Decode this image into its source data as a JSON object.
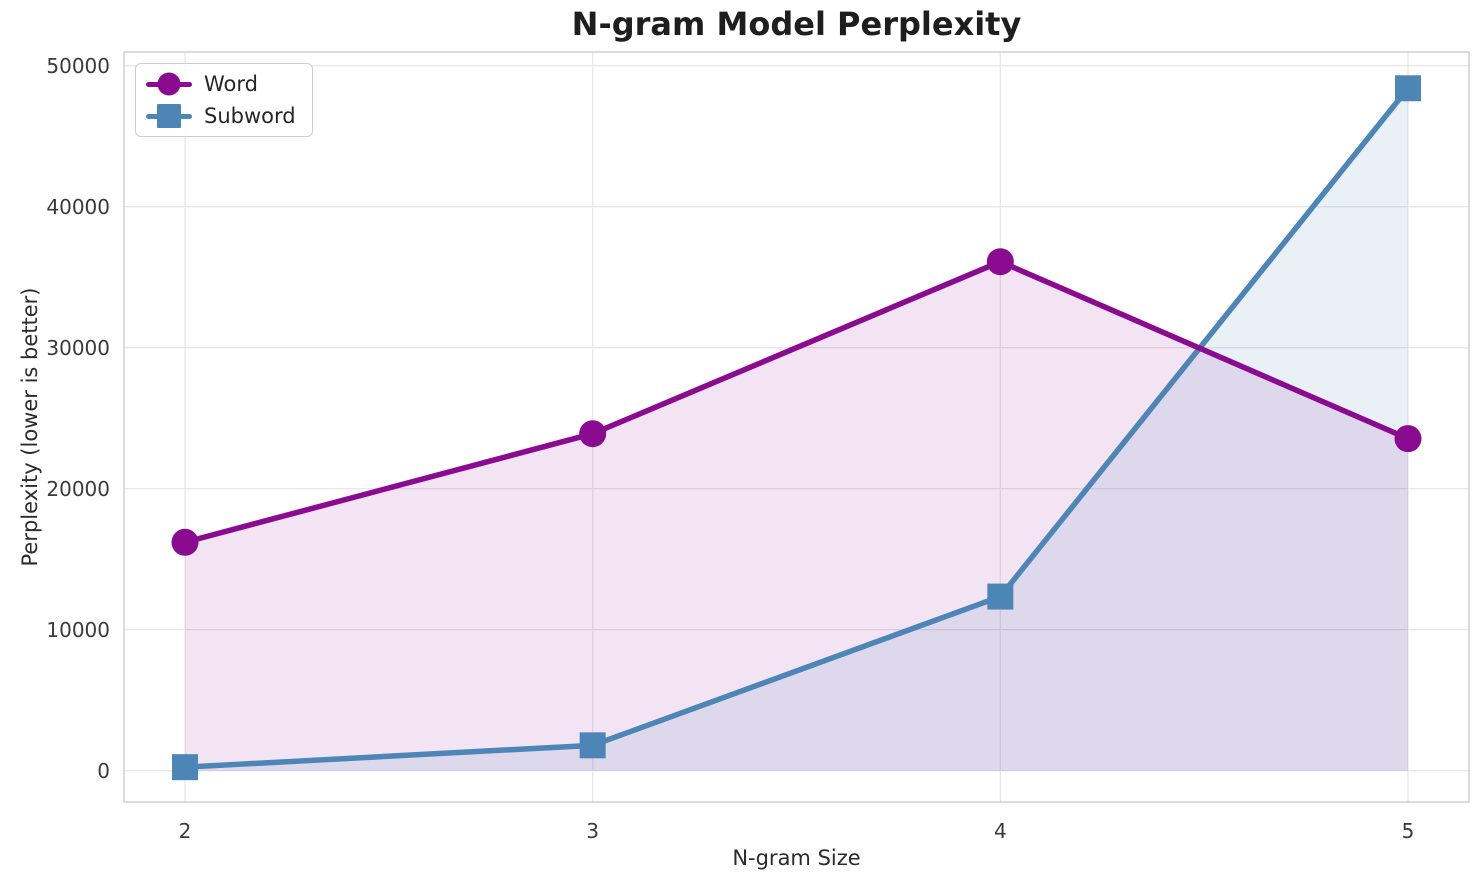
{
  "chart_data": {
    "type": "line",
    "title": "N-gram Model Perplexity",
    "xlabel": "N-gram Size",
    "ylabel": "Perplexity (lower is better)",
    "x": [
      2,
      3,
      4,
      5
    ],
    "xticks": [
      "2",
      "3",
      "4",
      "5"
    ],
    "yticks": [
      0,
      10000,
      20000,
      30000,
      40000,
      50000
    ],
    "ylim": [
      0,
      50000
    ],
    "grid": true,
    "legend_position": "upper-left",
    "area_fill_to_zero": true,
    "series": [
      {
        "name": "Word",
        "marker": "circle",
        "color": "#8a0a90",
        "fill_color": "rgba(138,10,144,0.11)",
        "values": [
          16200,
          23900,
          36100,
          23550
        ]
      },
      {
        "name": "Subword",
        "marker": "square",
        "color": "#4d86b6",
        "fill_color": "rgba(77,134,182,0.12)",
        "values": [
          250,
          1800,
          12350,
          48400
        ]
      }
    ]
  }
}
